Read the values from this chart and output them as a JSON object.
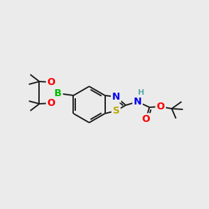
{
  "background_color": "#ebebeb",
  "bond_color": "#1a1a1a",
  "atom_colors": {
    "B": "#00bb00",
    "O": "#ff0000",
    "N": "#0000ee",
    "S": "#bbaa00",
    "H": "#5fa8a8",
    "C": "#1a1a1a"
  },
  "bond_lw": 1.4,
  "font_size_main": 10,
  "font_size_small": 8,
  "figsize": [
    3.0,
    3.0
  ],
  "dpi": 100
}
